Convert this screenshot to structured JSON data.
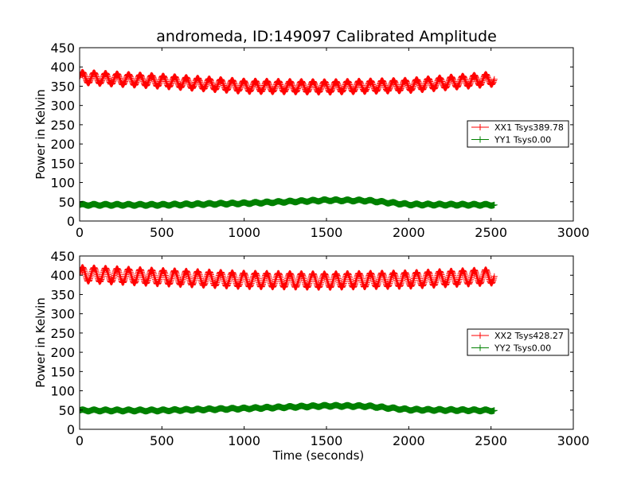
{
  "figure": {
    "title": "andromeda, ID:149097 Calibrated Amplitude"
  },
  "chart_data": [
    {
      "type": "line",
      "title": "andromeda, ID:149097 Calibrated Amplitude",
      "xlabel": "",
      "ylabel": "Power in Kelvin",
      "xlim": [
        0,
        3000
      ],
      "ylim": [
        0,
        450
      ],
      "xticks": [
        0,
        500,
        1000,
        1500,
        2000,
        2500,
        3000
      ],
      "yticks": [
        0,
        50,
        100,
        150,
        200,
        250,
        300,
        350,
        400,
        450
      ],
      "grid": false,
      "legend_position": "center-right",
      "series": [
        {
          "name": "XX1 Tsys389.78",
          "color": "#ff0000",
          "marker": "plus",
          "x_range": [
            0,
            2520
          ],
          "oscillation_period_s": 70,
          "oscillation_amplitude": 14,
          "baseline": [
            [
              0,
              373
            ],
            [
              500,
              363
            ],
            [
              1000,
              350
            ],
            [
              1500,
              348
            ],
            [
              2000,
              352
            ],
            [
              2500,
              368
            ]
          ]
        },
        {
          "name": "YY1 Tsys0.00",
          "color": "#008000",
          "marker": "plus",
          "x_range": [
            0,
            2520
          ],
          "oscillation_period_s": 70,
          "oscillation_amplitude": 2,
          "baseline": [
            [
              0,
              42
            ],
            [
              500,
              42
            ],
            [
              1000,
              46
            ],
            [
              1500,
              54
            ],
            [
              1750,
              53
            ],
            [
              2000,
              43
            ],
            [
              2500,
              42
            ]
          ]
        }
      ]
    },
    {
      "type": "line",
      "title": "",
      "xlabel": "Time (seconds)",
      "ylabel": "Power in Kelvin",
      "xlim": [
        0,
        3000
      ],
      "ylim": [
        0,
        450
      ],
      "xticks": [
        0,
        500,
        1000,
        1500,
        2000,
        2500,
        3000
      ],
      "yticks": [
        0,
        50,
        100,
        150,
        200,
        250,
        300,
        350,
        400,
        450
      ],
      "grid": false,
      "legend_position": "center-right",
      "series": [
        {
          "name": "XX2 Tsys428.27",
          "color": "#ff0000",
          "marker": "plus",
          "x_range": [
            0,
            2520
          ],
          "oscillation_period_s": 70,
          "oscillation_amplitude": 18,
          "baseline": [
            [
              0,
              403
            ],
            [
              500,
              395
            ],
            [
              1000,
              388
            ],
            [
              1500,
              386
            ],
            [
              2000,
              389
            ],
            [
              2500,
              397
            ]
          ]
        },
        {
          "name": "YY2 Tsys0.00",
          "color": "#008000",
          "marker": "plus",
          "x_range": [
            0,
            2520
          ],
          "oscillation_period_s": 70,
          "oscillation_amplitude": 2,
          "baseline": [
            [
              0,
              49
            ],
            [
              500,
              49
            ],
            [
              1000,
              54
            ],
            [
              1500,
              61
            ],
            [
              1750,
              60
            ],
            [
              2000,
              51
            ],
            [
              2500,
              49
            ]
          ]
        }
      ]
    }
  ]
}
